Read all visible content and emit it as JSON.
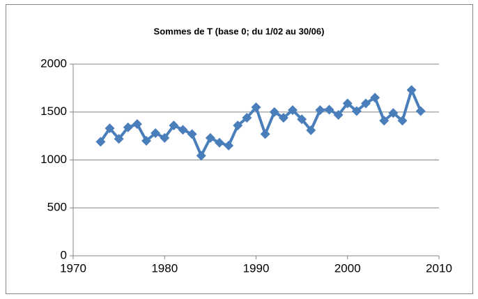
{
  "chart_data": {
    "type": "line",
    "title": "Sommes de T (base 0; du 1/02 au 30/06)",
    "x": [
      1973,
      1974,
      1975,
      1976,
      1977,
      1978,
      1979,
      1980,
      1981,
      1982,
      1983,
      1984,
      1985,
      1986,
      1987,
      1988,
      1989,
      1990,
      1991,
      1992,
      1993,
      1994,
      1995,
      1996,
      1997,
      1998,
      1999,
      2000,
      2001,
      2002,
      2003,
      2004,
      2005,
      2006,
      2007,
      2008
    ],
    "values": [
      1190,
      1330,
      1220,
      1340,
      1375,
      1200,
      1280,
      1230,
      1360,
      1315,
      1270,
      1045,
      1230,
      1180,
      1150,
      1360,
      1440,
      1550,
      1270,
      1500,
      1440,
      1520,
      1425,
      1310,
      1520,
      1525,
      1470,
      1590,
      1510,
      1590,
      1650,
      1410,
      1490,
      1410,
      1730,
      1510
    ],
    "color": "#4a7ebb",
    "xlim": [
      1970,
      2010
    ],
    "xticks": [
      1970,
      1980,
      1990,
      2000,
      2010
    ],
    "ylim": [
      0,
      2000
    ],
    "yticks": [
      0,
      500,
      1000,
      1500,
      2000
    ],
    "grid": true
  }
}
